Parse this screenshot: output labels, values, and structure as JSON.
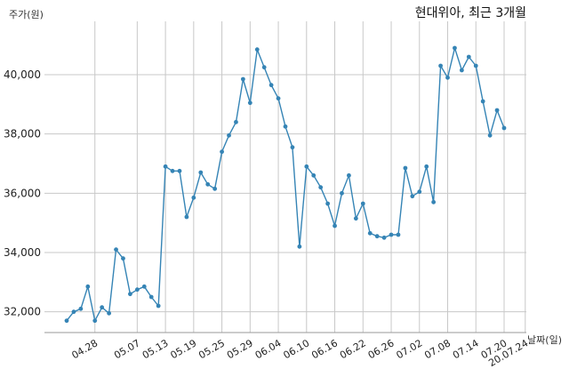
{
  "chart_data": {
    "type": "line",
    "title": "현대위아, 최근 3개월",
    "ylabel": "주가(원)",
    "xlabel": "날짜(일)",
    "ylim": [
      31300,
      41800
    ],
    "yticks": [
      32000,
      34000,
      36000,
      38000,
      40000
    ],
    "ytick_labels": [
      "32,000",
      "34,000",
      "36,000",
      "38,000",
      "40,000"
    ],
    "xtick_labels": [
      "04.28",
      "05.07",
      "05.13",
      "05.19",
      "05.25",
      "05.29",
      "06.04",
      "06.10",
      "06.16",
      "06.22",
      "06.26",
      "07.02",
      "07.08",
      "07.14",
      "07.20",
      "20.07.24"
    ],
    "xtick_index": [
      4,
      10,
      14,
      18,
      22,
      26,
      30,
      34,
      38,
      42,
      46,
      50,
      54,
      58,
      62,
      65
    ],
    "grid": true,
    "line_color": "#3584b5",
    "series": [
      {
        "values": [
          31700,
          32000,
          32100,
          32850,
          31700,
          32150,
          31950,
          34100,
          33800,
          32600,
          32750,
          32850,
          32500,
          32200,
          36900,
          36750,
          36750,
          35200,
          35850,
          36700,
          36300,
          36150,
          37400,
          37950,
          38400,
          39850,
          39050,
          40850,
          40250,
          39650,
          39200,
          38250,
          37550,
          34200,
          36900,
          36600,
          36200,
          35650,
          34900,
          36000,
          36600,
          35150,
          35650,
          34650,
          34550,
          34500,
          34600,
          34600,
          36850,
          35900,
          36050,
          36900,
          35700,
          40300,
          39900,
          40900,
          40150,
          40600,
          40300,
          39100,
          37950,
          38800,
          38200
        ]
      }
    ]
  }
}
